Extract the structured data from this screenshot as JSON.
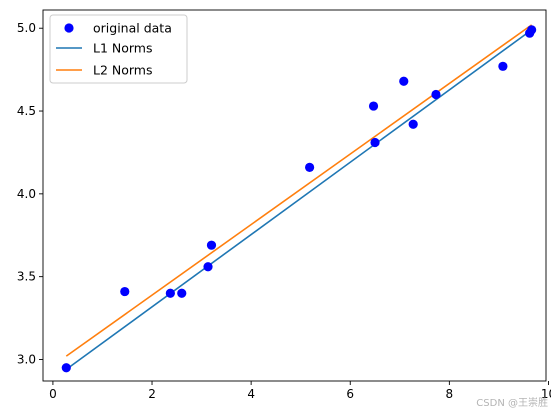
{
  "watermark": "CSDN @王崇胜",
  "chart_data": {
    "type": "scatter",
    "title": "",
    "xlabel": "",
    "ylabel": "",
    "xlim": [
      -0.2,
      9.95
    ],
    "ylim": [
      2.87,
      5.11
    ],
    "x_ticks": [
      0,
      2,
      4,
      6,
      8,
      10
    ],
    "y_ticks": [
      3.0,
      3.5,
      4.0,
      4.5,
      5.0
    ],
    "x_tick_labels": [
      "0",
      "2",
      "4",
      "6",
      "8",
      "10"
    ],
    "y_tick_labels": [
      "3.0",
      "3.5",
      "4.0",
      "4.5",
      "5.0"
    ],
    "grid": false,
    "legend_position": "top-left",
    "series": [
      {
        "name": "original data",
        "kind": "scatter",
        "color": "#0000ff",
        "x": [
          0.27,
          1.45,
          2.37,
          2.6,
          3.13,
          3.2,
          5.18,
          6.47,
          6.5,
          7.08,
          7.27,
          7.73,
          9.08,
          9.62,
          9.66
        ],
        "y": [
          2.95,
          3.41,
          3.4,
          3.4,
          3.56,
          3.69,
          4.16,
          4.53,
          4.31,
          4.68,
          4.42,
          4.6,
          4.77,
          4.97,
          4.99
        ]
      },
      {
        "name": "L1 Norms",
        "kind": "line",
        "color": "#1f77b4",
        "x": [
          0.27,
          9.66
        ],
        "y": [
          2.94,
          4.99
        ]
      },
      {
        "name": "L2 Norms",
        "kind": "line",
        "color": "#ff7f0e",
        "x": [
          0.27,
          9.66
        ],
        "y": [
          3.02,
          5.02
        ]
      }
    ]
  }
}
